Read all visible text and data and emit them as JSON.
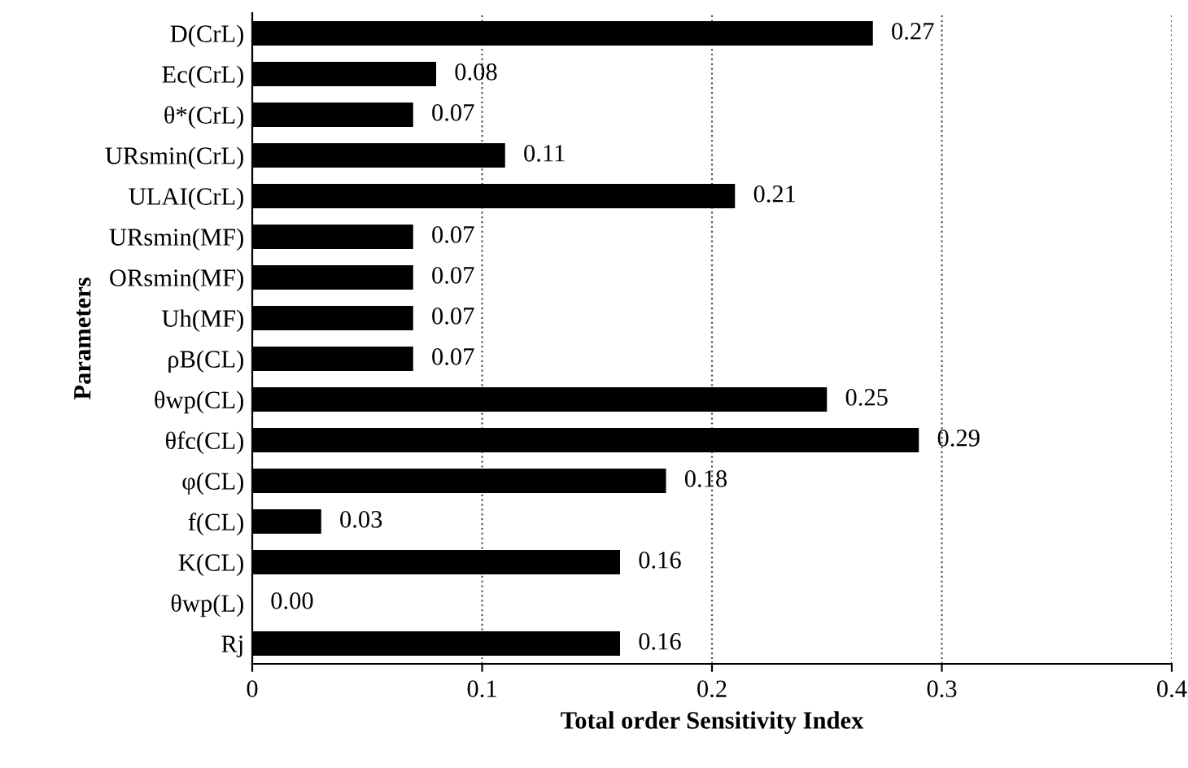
{
  "chart_data": {
    "type": "bar",
    "orientation": "horizontal",
    "xlabel": "Total order Sensitivity Index",
    "ylabel": "Parameters",
    "categories": [
      "D(CrL)",
      "Ec(CrL)",
      "θ*(CrL)",
      "URsmin(CrL)",
      "ULAI(CrL)",
      "URsmin(MF)",
      "ORsmin(MF)",
      "Uh(MF)",
      "ρB(CL)",
      "θwp(CL)",
      "θfc(CL)",
      "φ(CL)",
      "f(CL)",
      "K(CL)",
      "θwp(L)",
      "Rj"
    ],
    "values": [
      0.27,
      0.08,
      0.07,
      0.11,
      0.21,
      0.07,
      0.07,
      0.07,
      0.07,
      0.25,
      0.29,
      0.18,
      0.03,
      0.16,
      0.0,
      0.16
    ],
    "value_labels": [
      "0.27",
      "0.08",
      "0.07",
      "0.11",
      "0.21",
      "0.07",
      "0.07",
      "0.07",
      "0.07",
      "0.25",
      "0.29",
      "0.18",
      "0.03",
      "0.16",
      "0.00",
      "0.16"
    ],
    "color": "#000000",
    "xlim": [
      0,
      0.4
    ],
    "xticks": [
      0,
      0.1,
      0.2,
      0.3,
      0.4
    ],
    "grid": "x"
  }
}
